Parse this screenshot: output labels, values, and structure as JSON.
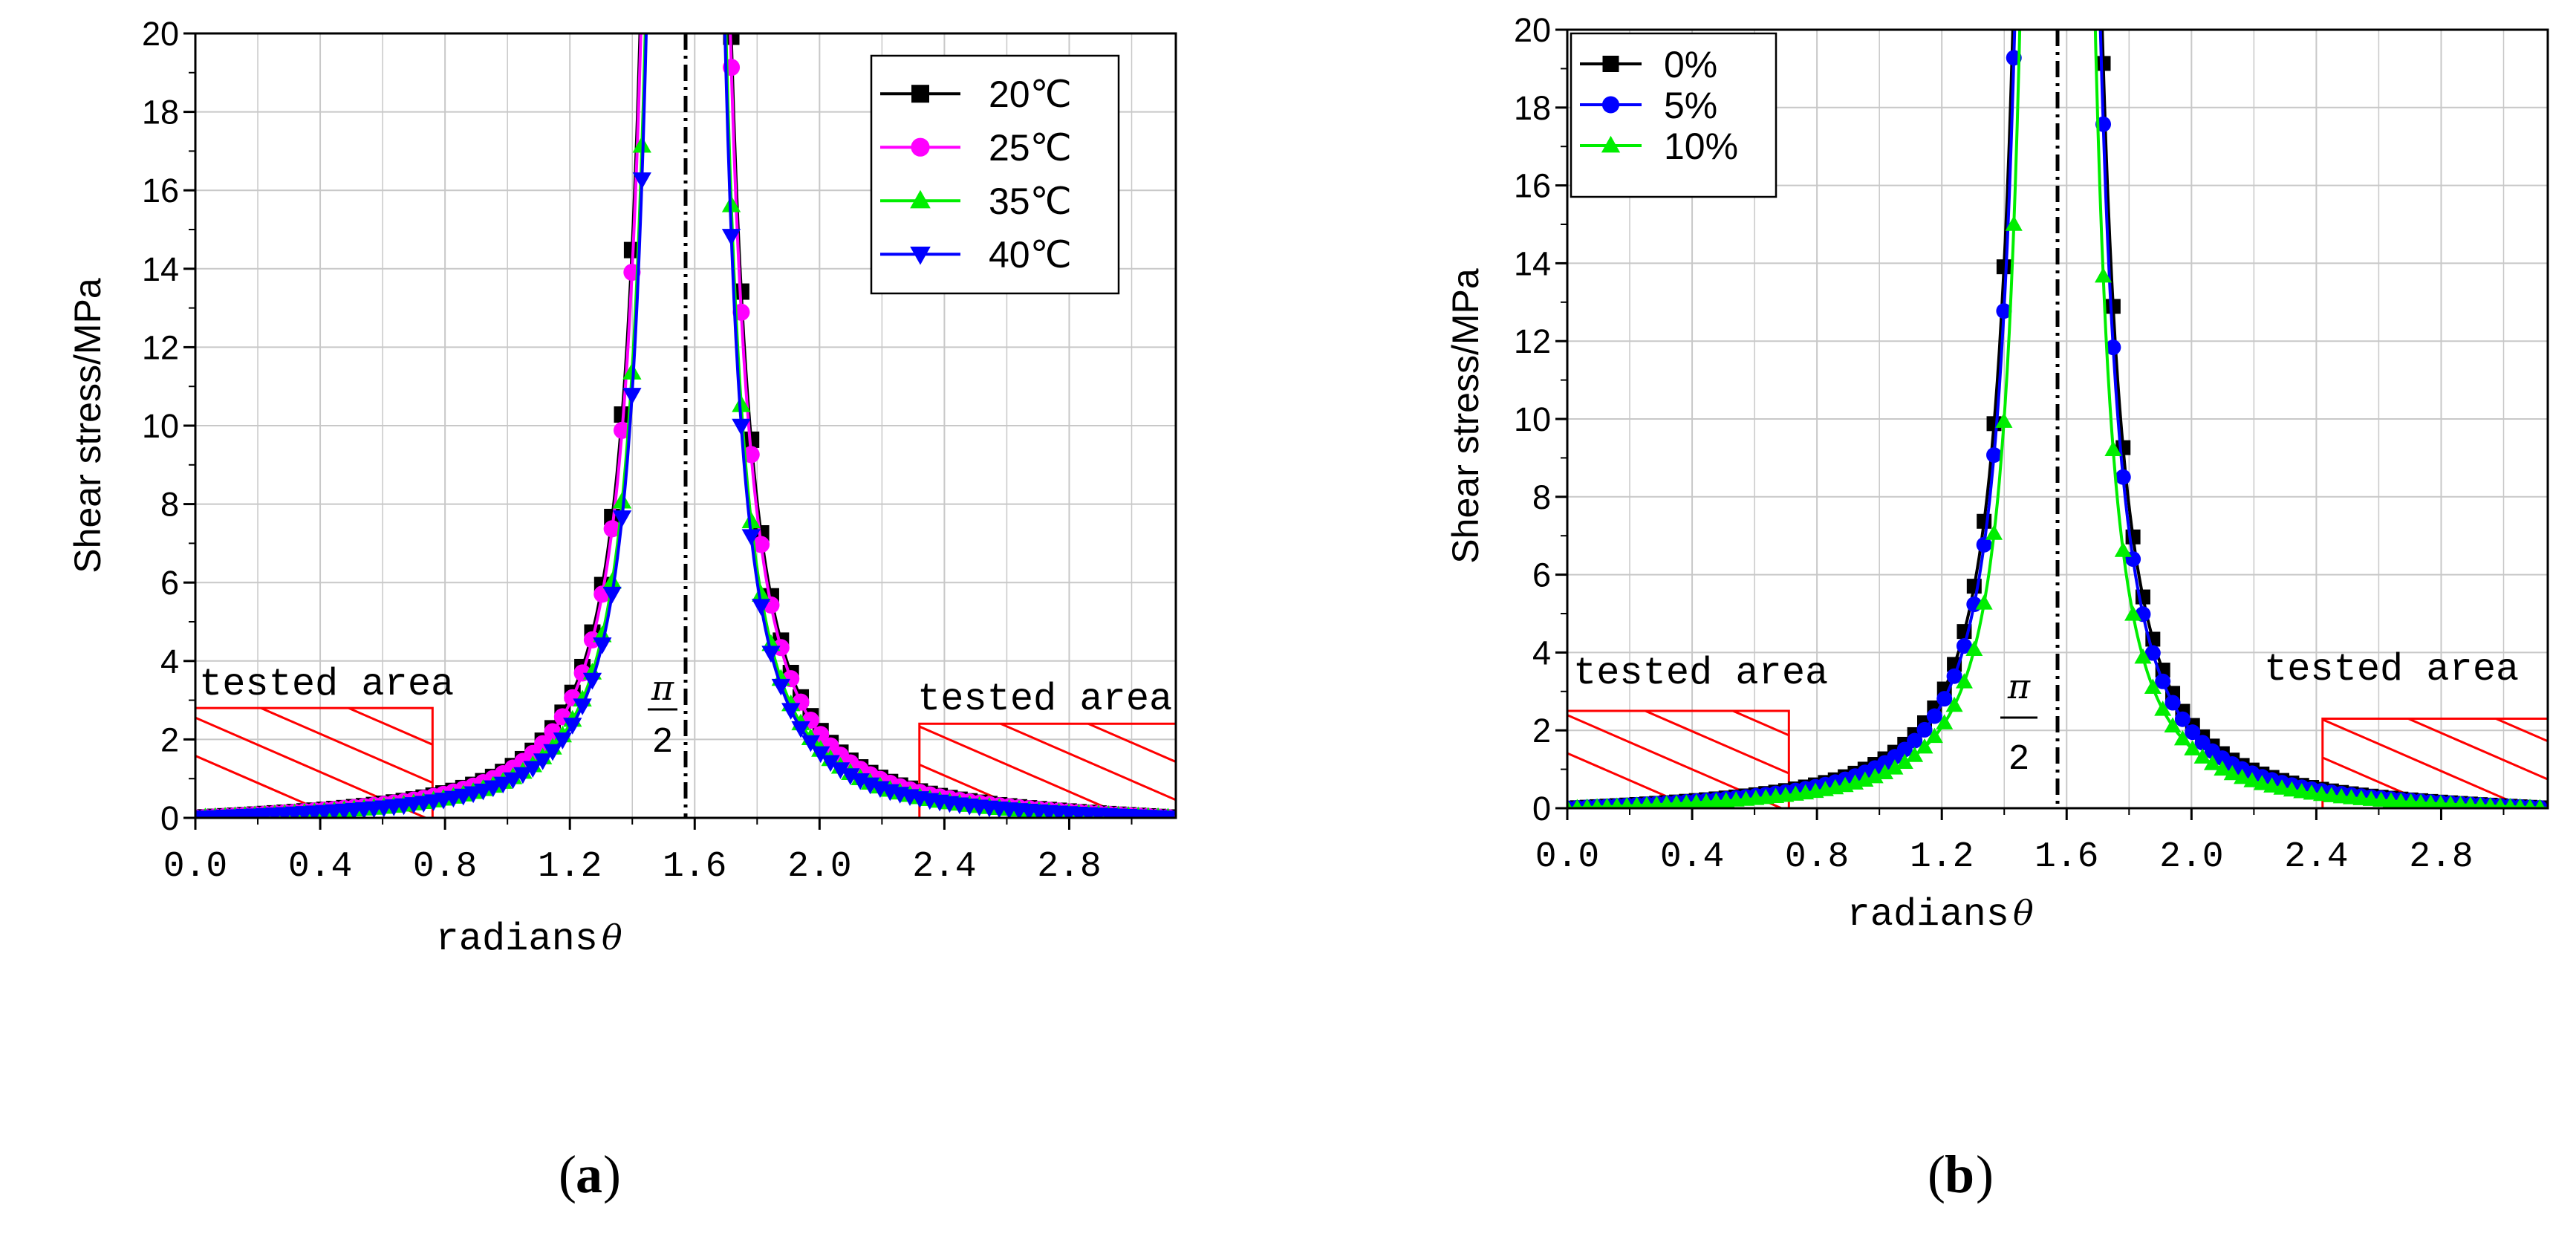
{
  "chart_data": [
    {
      "id": "a",
      "type": "line",
      "caption": "a",
      "xlabel": "radians",
      "xlabel_symbol": "θ",
      "ylabel": "Shear stress/MPa",
      "xlim": [
        0,
        3.1416
      ],
      "ylim": [
        0,
        20
      ],
      "xticks": [
        "0.0",
        "0.4",
        "0.8",
        "1.2",
        "1.6",
        "2.0",
        "2.4",
        "2.8"
      ],
      "xtick_values": [
        0,
        0.4,
        0.8,
        1.2,
        1.6,
        2.0,
        2.4,
        2.8
      ],
      "yticks": [
        "0",
        "2",
        "4",
        "6",
        "8",
        "10",
        "12",
        "14",
        "16",
        "18",
        "20"
      ],
      "grid": true,
      "legend_position": "top-right",
      "asymptote": {
        "x": 1.5708,
        "label_num": "π",
        "label_den": "2"
      },
      "annotations": [
        {
          "text": "tested area",
          "x0": 0,
          "x1": 0.76,
          "height": 2.8
        },
        {
          "text": "tested area",
          "x0": 2.32,
          "x1": 3.1416,
          "height": 2.4
        }
      ],
      "series": [
        {
          "name": "20℃",
          "color": "#000000",
          "marker": "square",
          "k": 1.02
        },
        {
          "name": "25℃",
          "color": "#ff00ff",
          "marker": "circle",
          "k": 0.98
        },
        {
          "name": "35℃",
          "color": "#00ee00",
          "marker": "triangle-up",
          "k": 0.8
        },
        {
          "name": "40℃",
          "color": "#0000ff",
          "marker": "triangle-down",
          "k": 0.76
        }
      ]
    },
    {
      "id": "b",
      "type": "line",
      "caption": "b",
      "xlabel": "radians",
      "xlabel_symbol": "θ",
      "ylabel": "Shear stress/MPa",
      "xlim": [
        0,
        3.1416
      ],
      "ylim": [
        0,
        20
      ],
      "xticks": [
        "0.0",
        "0.4",
        "0.8",
        "1.2",
        "1.6",
        "2.0",
        "2.4",
        "2.8"
      ],
      "xtick_values": [
        0,
        0.4,
        0.8,
        1.2,
        1.6,
        2.0,
        2.4,
        2.8
      ],
      "yticks": [
        "0",
        "2",
        "4",
        "6",
        "8",
        "10",
        "12",
        "14",
        "16",
        "18",
        "20"
      ],
      "grid": true,
      "legend_position": "top-left",
      "asymptote": {
        "x": 1.5708,
        "label_num": "π",
        "label_den": "2"
      },
      "annotations": [
        {
          "text": "tested area",
          "x0": 0,
          "x1": 0.71,
          "height": 2.5
        },
        {
          "text": "tested area",
          "x0": 2.42,
          "x1": 3.1416,
          "height": 2.3
        }
      ],
      "series": [
        {
          "name": "0%",
          "color": "#000000",
          "marker": "square",
          "k": 0.98
        },
        {
          "name": "5%",
          "color": "#0000ff",
          "marker": "circle",
          "k": 0.9
        },
        {
          "name": "10%",
          "color": "#00ee00",
          "marker": "triangle-up",
          "k": 0.7
        }
      ]
    }
  ]
}
